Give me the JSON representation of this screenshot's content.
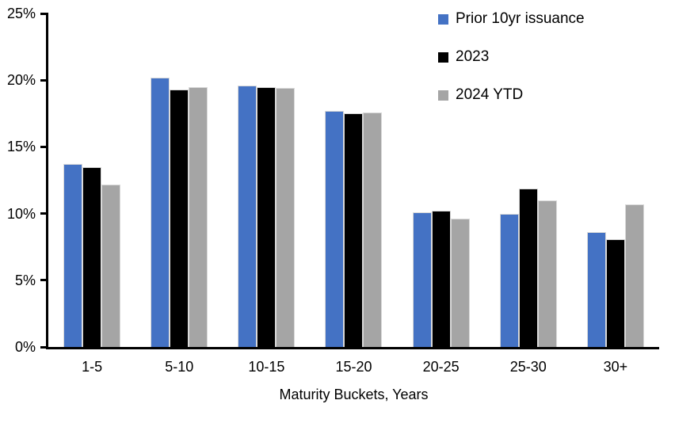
{
  "chart_data": {
    "type": "bar",
    "title": "",
    "xlabel": "Maturity Buckets, Years",
    "ylabel": "",
    "ylim": [
      0,
      25
    ],
    "y_tick_labels": [
      "0%",
      "5%",
      "10%",
      "15%",
      "20%",
      "25%"
    ],
    "grid": false,
    "legend_position": "top-right",
    "categories": [
      "1-5",
      "5-10",
      "10-15",
      "15-20",
      "20-25",
      "25-30",
      "30+"
    ],
    "series": [
      {
        "name": "Prior 10yr issuance",
        "color": "#4472C4",
        "values": [
          13.7,
          20.2,
          19.6,
          17.7,
          10.1,
          10.0,
          8.6
        ]
      },
      {
        "name": "2023",
        "color": "#000000",
        "values": [
          13.5,
          19.3,
          19.5,
          17.5,
          10.2,
          11.9,
          8.1
        ]
      },
      {
        "name": "2024 YTD",
        "color": "#A5A5A5",
        "values": [
          12.2,
          19.5,
          19.4,
          17.6,
          9.6,
          11.0,
          10.7
        ]
      }
    ]
  },
  "colors": {
    "axis": "#000000",
    "bar_border": "#D9D9D9",
    "background": "#FFFFFF"
  }
}
